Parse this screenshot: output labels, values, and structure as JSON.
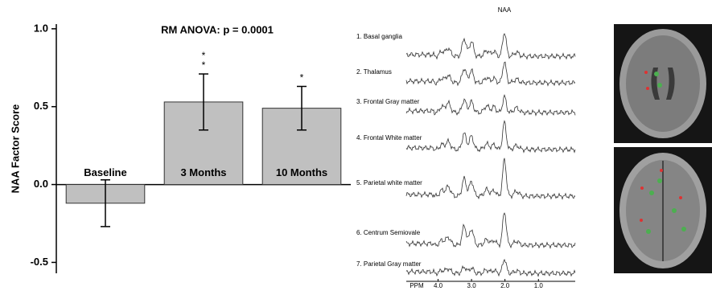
{
  "chart_data": {
    "type": "bar",
    "title": "RM ANOVA: p = 0.0001",
    "y_label": "NAA Factor Score",
    "categories": [
      "Baseline",
      "3 Months",
      "10 Months"
    ],
    "values": [
      -0.12,
      0.53,
      0.49
    ],
    "errors": [
      0.15,
      0.18,
      0.14
    ],
    "significance": [
      null,
      [
        "*",
        "*"
      ],
      [
        "*"
      ]
    ],
    "color": "#c0c0c0",
    "ylim": [
      -0.57,
      1.03
    ],
    "yticks": [
      {
        "value": 1.0,
        "label": "1.0"
      },
      0.5,
      {
        "value": 0.0,
        "label": "0.0"
      },
      -0.5
    ]
  },
  "spectra": {
    "peak_label": "NAA",
    "x_label": "PPM",
    "regions": [
      "1. Basal ganglia",
      "2. Thalamus",
      "3. Frontal Gray matter",
      "4. Frontal White matter",
      "5. Parietal white matter",
      "6. Centrum Semiovale",
      "7. Parietal Gray matter"
    ],
    "xlim": [
      4.95,
      -0.1
    ],
    "xticks": [
      {
        "value": 4.0,
        "label": "4.0"
      },
      {
        "value": 3.0,
        "label": "3.0"
      },
      {
        "value": 2.0,
        "label": "2.0"
      },
      {
        "value": 1.0,
        "label": "1.0"
      }
    ]
  }
}
